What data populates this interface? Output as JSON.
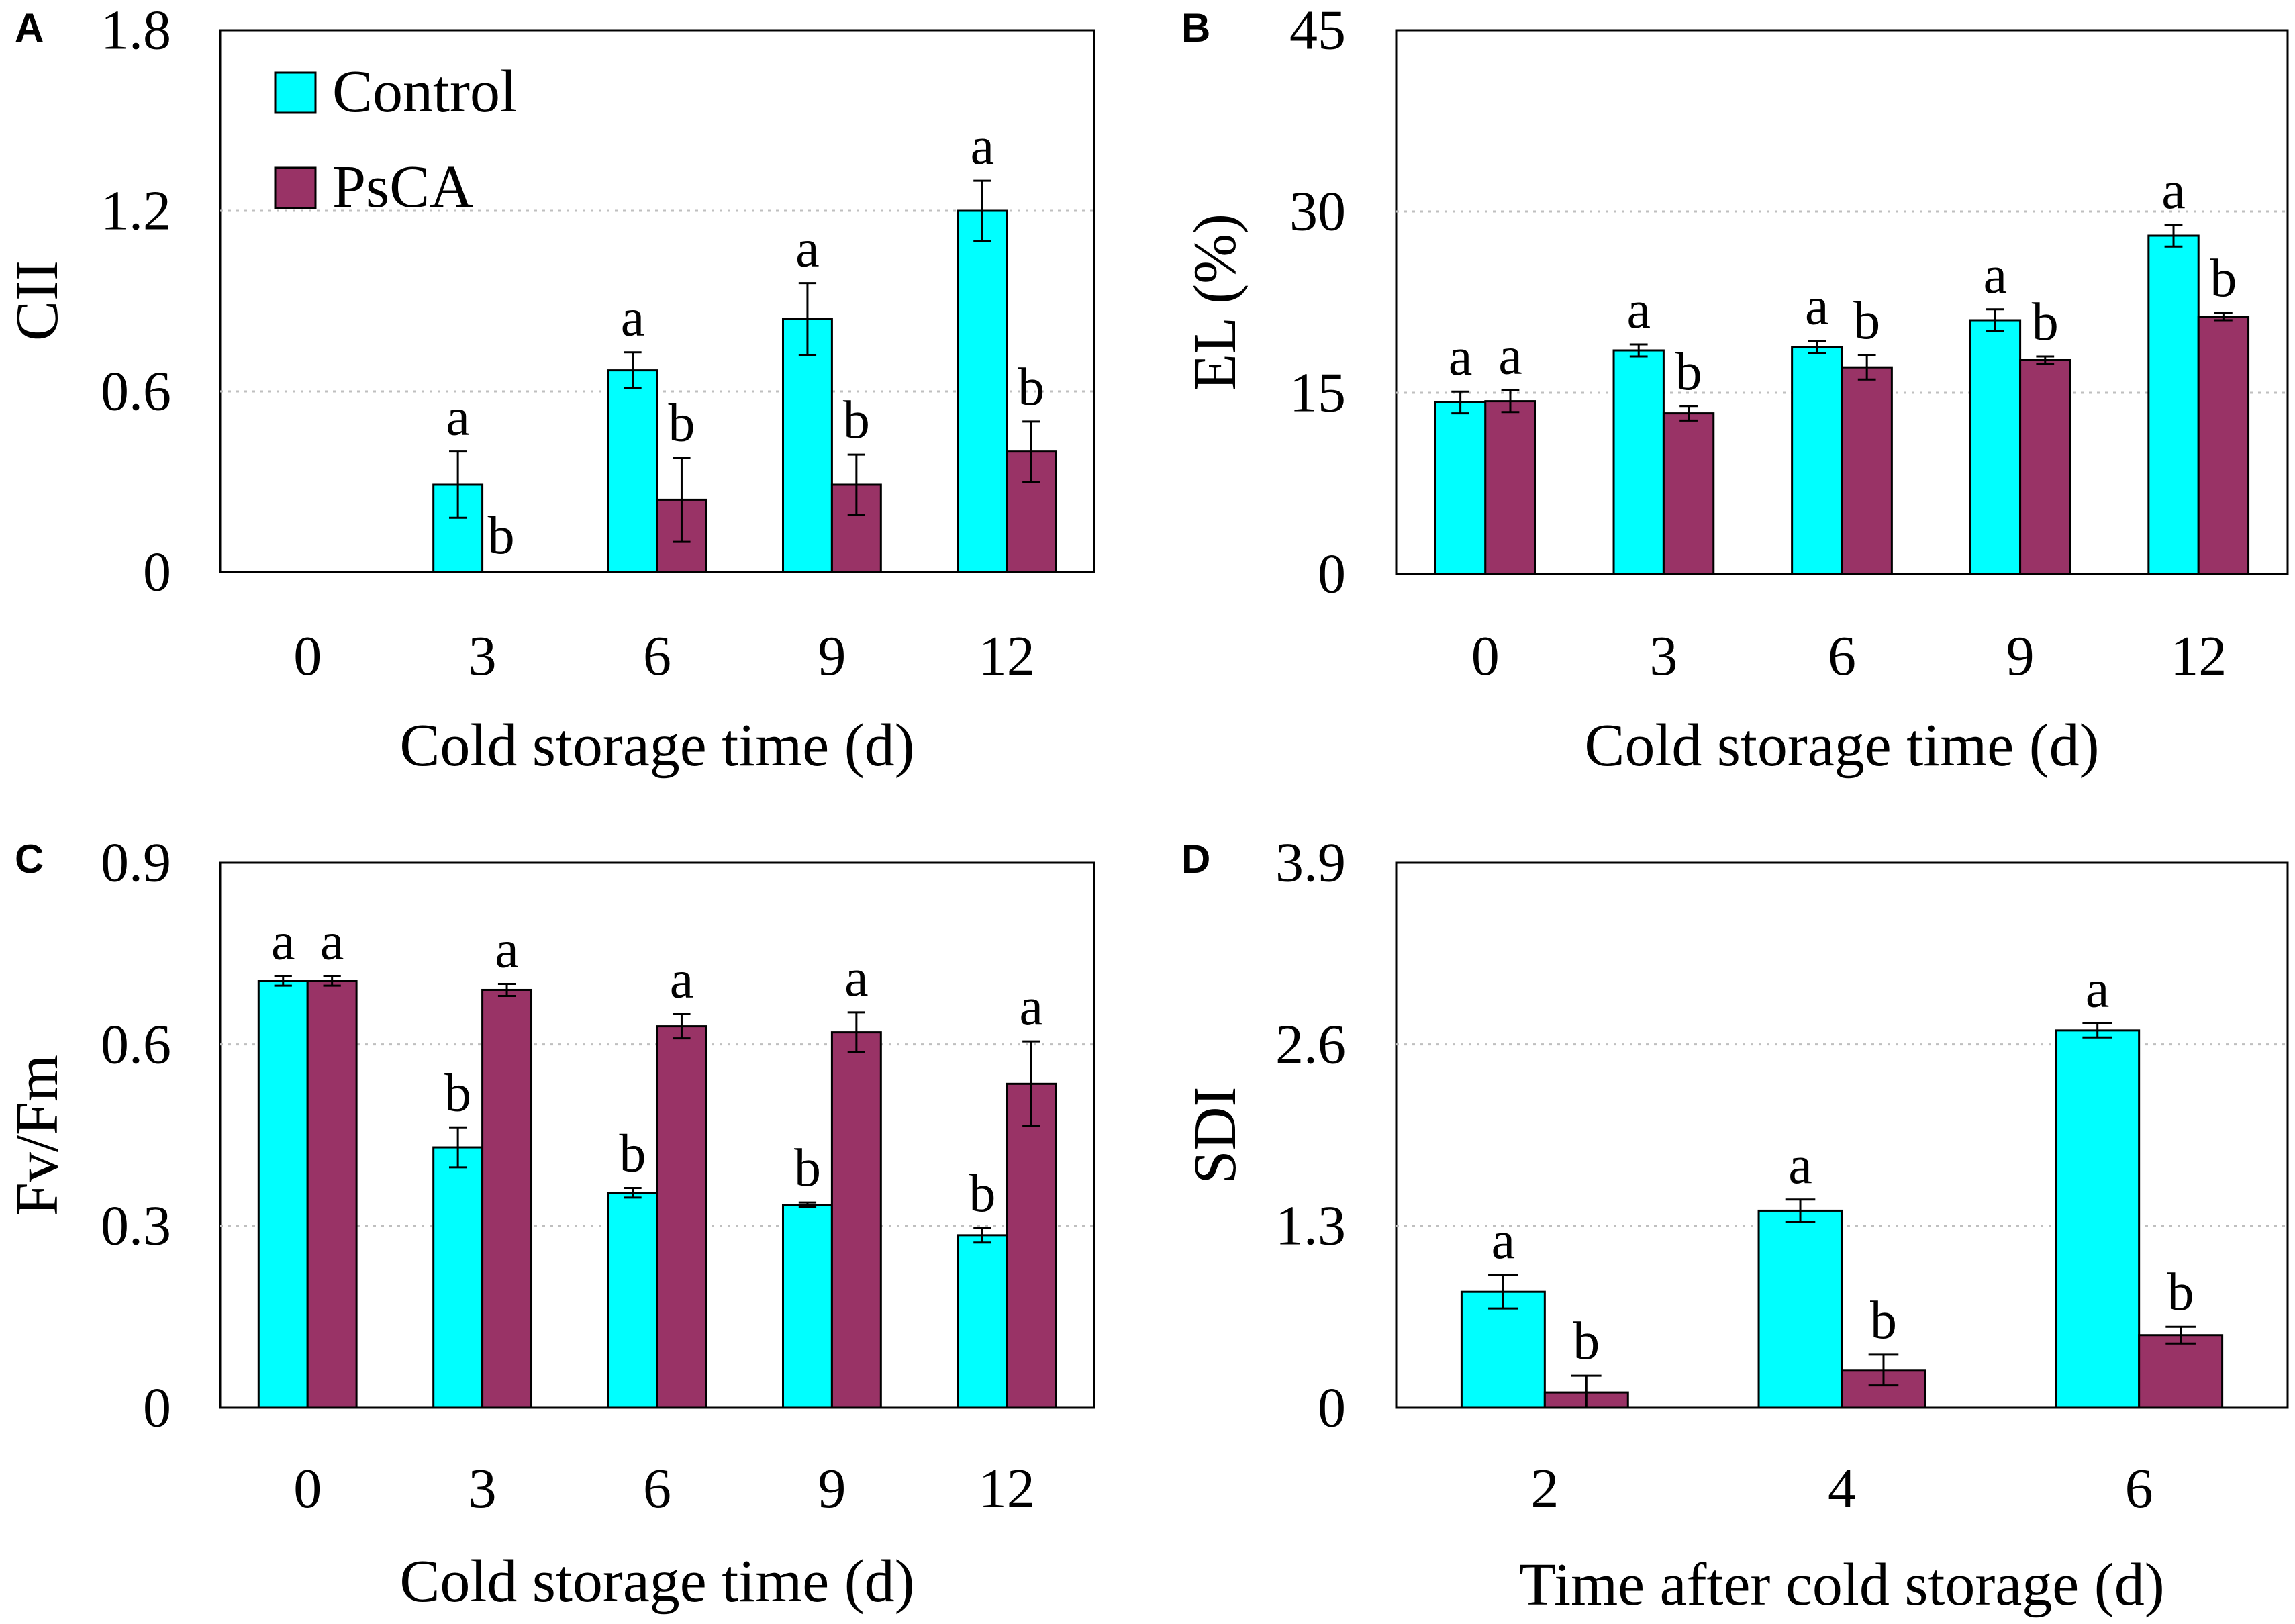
{
  "colors": {
    "control": "#00FFFF",
    "psca": "#993366",
    "axis": "#000000",
    "grid": "#bfbfbf"
  },
  "legend": {
    "control_label": "Control",
    "psca_label": "PsCA"
  },
  "chart_data": [
    {
      "id": "A",
      "panel_label": "A",
      "type": "bar",
      "title": "",
      "xlabel": "Cold storage time (d)",
      "ylabel": "CII",
      "ylim": [
        0,
        1.8
      ],
      "yticks": [
        "0",
        "0.6",
        "1.2",
        "1.8"
      ],
      "categories": [
        "0",
        "3",
        "6",
        "9",
        "12"
      ],
      "series": [
        {
          "name": "Control",
          "values": [
            0,
            0.29,
            0.67,
            0.84,
            1.2
          ],
          "errors": [
            0,
            0.11,
            0.06,
            0.12,
            0.1
          ],
          "letters": [
            "",
            "a",
            "a",
            "a",
            "a"
          ]
        },
        {
          "name": "PsCA",
          "values": [
            0,
            0,
            0.24,
            0.29,
            0.4
          ],
          "errors": [
            0,
            0,
            0.14,
            0.1,
            0.1
          ],
          "letters": [
            "",
            "b",
            "b",
            "b",
            "b"
          ]
        }
      ]
    },
    {
      "id": "B",
      "panel_label": "B",
      "type": "bar",
      "title": "",
      "xlabel": "Cold storage time (d)",
      "ylabel": "EL (%)",
      "ylim": [
        0,
        45
      ],
      "yticks": [
        "0",
        "15",
        "30",
        "45"
      ],
      "categories": [
        "0",
        "3",
        "6",
        "9",
        "12"
      ],
      "series": [
        {
          "name": "Control",
          "values": [
            14.2,
            18.5,
            18.8,
            21,
            28
          ],
          "errors": [
            0.9,
            0.5,
            0.5,
            0.9,
            0.9
          ],
          "letters": [
            "a",
            "a",
            "a",
            "a",
            "a"
          ]
        },
        {
          "name": "PsCA",
          "values": [
            14.3,
            13.3,
            17.1,
            17.7,
            21.3
          ],
          "errors": [
            0.9,
            0.6,
            1.0,
            0.3,
            0.3
          ],
          "letters": [
            "a",
            "b",
            "b",
            "b",
            "b"
          ]
        }
      ]
    },
    {
      "id": "C",
      "panel_label": "C",
      "type": "bar",
      "title": "",
      "xlabel": "Cold storage time (d)",
      "ylabel": "Fv/Fm",
      "ylim": [
        0,
        0.9
      ],
      "yticks": [
        "0",
        "0.3",
        "0.6",
        "0.9"
      ],
      "categories": [
        "0",
        "3",
        "6",
        "9",
        "12"
      ],
      "series": [
        {
          "name": "Control",
          "values": [
            0.705,
            0.43,
            0.355,
            0.335,
            0.285
          ],
          "errors": [
            0.008,
            0.033,
            0.008,
            0.004,
            0.012
          ],
          "letters": [
            "a",
            "b",
            "b",
            "b",
            "b"
          ]
        },
        {
          "name": "PsCA",
          "values": [
            0.705,
            0.69,
            0.63,
            0.62,
            0.535
          ],
          "errors": [
            0.008,
            0.01,
            0.02,
            0.033,
            0.07
          ],
          "letters": [
            "a",
            "a",
            "a",
            "a",
            "a"
          ]
        }
      ]
    },
    {
      "id": "D",
      "panel_label": "D",
      "type": "bar",
      "title": "",
      "xlabel": "Time after cold storage (d)",
      "ylabel": "SDI",
      "ylim": [
        0,
        3.9
      ],
      "yticks": [
        "0",
        "1.3",
        "2.6",
        "3.9"
      ],
      "categories": [
        "2",
        "4",
        "6"
      ],
      "series": [
        {
          "name": "Control",
          "values": [
            0.83,
            1.41,
            2.7
          ],
          "errors": [
            0.12,
            0.08,
            0.05
          ],
          "letters": [
            "a",
            "a",
            "a"
          ]
        },
        {
          "name": "PsCA",
          "values": [
            0.11,
            0.27,
            0.52
          ],
          "errors": [
            0.12,
            0.11,
            0.06
          ],
          "letters": [
            "b",
            "b",
            "b"
          ]
        }
      ]
    }
  ]
}
